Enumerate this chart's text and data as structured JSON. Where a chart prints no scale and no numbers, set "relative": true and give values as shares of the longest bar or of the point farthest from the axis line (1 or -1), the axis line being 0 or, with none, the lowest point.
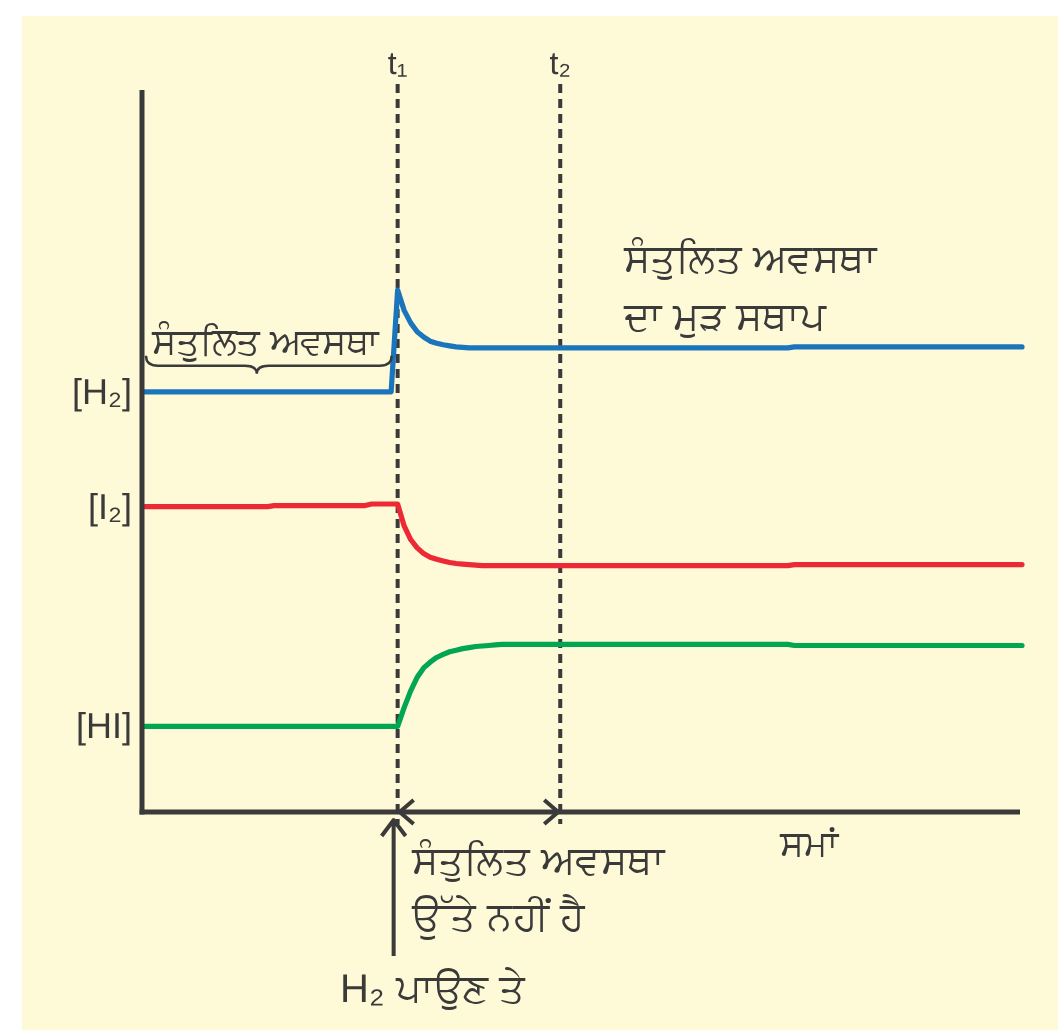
{
  "chart_data": {
    "type": "line",
    "relative": true,
    "line_style": "solid",
    "grid": "x",
    "xlabel": "ਸਮਾਂ",
    "categories": [
      null,
      null,
      null,
      null,
      null,
      null,
      null,
      null,
      null,
      null,
      null,
      null,
      null,
      null,
      null,
      null,
      null,
      null,
      null,
      null,
      null,
      null,
      null,
      null,
      null,
      null,
      null,
      null,
      null,
      null,
      null,
      null,
      null,
      null,
      null,
      null,
      null,
      null,
      null,
      "t₁",
      null,
      null,
      null,
      null,
      null,
      null,
      null,
      null,
      null,
      null,
      null,
      null,
      null,
      null,
      null,
      null,
      null,
      null,
      null,
      null,
      null,
      null,
      null,
      null,
      "t₂",
      null,
      null,
      null,
      null,
      null,
      null,
      null,
      null,
      null,
      null,
      null,
      null,
      null,
      null,
      null,
      null,
      null,
      null,
      null,
      null,
      null,
      null,
      null,
      null,
      null,
      null,
      null,
      null,
      null,
      null,
      null,
      null,
      null,
      null,
      null,
      null,
      null,
      null,
      null,
      null,
      null,
      null,
      null,
      null,
      null,
      null,
      null,
      null,
      null,
      null,
      null,
      null,
      null,
      null,
      null,
      null,
      null,
      null,
      null,
      null,
      null,
      null,
      null,
      null,
      null,
      null,
      null,
      null,
      null,
      null,
      null
    ],
    "series": [
      {
        "name": "[H₂]",
        "color": "#1b75bc",
        "values": [
          0.805,
          0.805,
          0.805,
          0.805,
          0.805,
          0.805,
          0.805,
          0.805,
          0.805,
          0.805,
          0.805,
          0.805,
          0.805,
          0.805,
          0.805,
          0.805,
          0.805,
          0.805,
          0.805,
          0.805,
          0.805,
          0.805,
          0.805,
          0.805,
          0.805,
          0.805,
          0.805,
          0.805,
          0.805,
          0.805,
          0.805,
          0.805,
          0.805,
          0.805,
          0.805,
          0.805,
          0.805,
          0.805,
          0.805,
          1,
          0.961,
          0.937,
          0.92,
          0.91,
          0.902,
          0.898,
          0.895,
          0.893,
          0.891,
          0.89,
          0.889,
          0.889,
          0.889,
          0.889,
          0.889,
          0.889,
          0.889,
          0.889,
          0.889,
          0.889,
          0.889,
          0.889,
          0.889,
          0.889,
          0.889,
          0.889,
          0.889,
          0.889,
          0.889,
          0.889,
          0.889,
          0.889,
          0.889,
          0.889,
          0.889,
          0.889,
          0.889,
          0.889,
          0.889,
          0.889,
          0.889,
          0.889,
          0.889,
          0.889,
          0.889,
          0.889,
          0.889,
          0.889,
          0.889,
          0.889,
          0.889,
          0.889,
          0.889,
          0.889,
          0.889,
          0.889,
          0.889,
          0.889,
          0.889,
          0.889,
          0.891,
          0.891,
          0.891,
          0.891,
          0.891,
          0.891,
          0.891,
          0.891,
          0.891,
          0.891,
          0.891,
          0.891,
          0.891,
          0.891,
          0.891,
          0.891,
          0.891,
          0.891,
          0.891,
          0.891,
          0.891,
          0.891,
          0.891,
          0.891,
          0.891,
          0.891,
          0.891,
          0.891,
          0.891,
          0.891,
          0.891,
          0.891,
          0.891,
          0.891,
          0.891,
          0.891
        ]
      },
      {
        "name": "[I₂]",
        "color": "#ec2a35",
        "values": [
          0.585,
          0.585,
          0.585,
          0.585,
          0.585,
          0.585,
          0.585,
          0.585,
          0.585,
          0.585,
          0.585,
          0.585,
          0.585,
          0.585,
          0.585,
          0.585,
          0.585,
          0.585,
          0.585,
          0.585,
          0.587,
          0.587,
          0.587,
          0.587,
          0.587,
          0.587,
          0.587,
          0.587,
          0.587,
          0.587,
          0.587,
          0.587,
          0.587,
          0.587,
          0.587,
          0.59,
          0.59,
          0.59,
          0.59,
          0.59,
          0.548,
          0.522,
          0.506,
          0.495,
          0.488,
          0.484,
          0.481,
          0.478,
          0.476,
          0.475,
          0.474,
          0.473,
          0.472,
          0.472,
          0.472,
          0.472,
          0.472,
          0.472,
          0.472,
          0.472,
          0.472,
          0.472,
          0.472,
          0.472,
          0.472,
          0.472,
          0.472,
          0.472,
          0.472,
          0.472,
          0.472,
          0.472,
          0.472,
          0.472,
          0.472,
          0.472,
          0.472,
          0.472,
          0.472,
          0.472,
          0.472,
          0.472,
          0.472,
          0.472,
          0.472,
          0.472,
          0.472,
          0.472,
          0.472,
          0.472,
          0.472,
          0.472,
          0.472,
          0.472,
          0.472,
          0.472,
          0.472,
          0.472,
          0.472,
          0.472,
          0.474,
          0.474,
          0.474,
          0.474,
          0.474,
          0.474,
          0.474,
          0.474,
          0.474,
          0.474,
          0.474,
          0.474,
          0.474,
          0.474,
          0.474,
          0.474,
          0.474,
          0.474,
          0.474,
          0.474,
          0.474,
          0.474,
          0.474,
          0.474,
          0.474,
          0.474,
          0.474,
          0.474,
          0.474,
          0.474,
          0.474,
          0.474,
          0.474,
          0.474,
          0.474,
          0.474
        ]
      },
      {
        "name": "[HI]",
        "color": "#00a651",
        "values": [
          0.164,
          0.164,
          0.164,
          0.164,
          0.164,
          0.164,
          0.164,
          0.164,
          0.164,
          0.164,
          0.164,
          0.164,
          0.164,
          0.164,
          0.164,
          0.164,
          0.164,
          0.164,
          0.164,
          0.164,
          0.164,
          0.164,
          0.164,
          0.164,
          0.164,
          0.164,
          0.164,
          0.164,
          0.164,
          0.164,
          0.164,
          0.164,
          0.164,
          0.164,
          0.164,
          0.164,
          0.164,
          0.164,
          0.164,
          0.164,
          0.2,
          0.232,
          0.258,
          0.276,
          0.287,
          0.296,
          0.302,
          0.307,
          0.31,
          0.313,
          0.315,
          0.317,
          0.318,
          0.319,
          0.32,
          0.321,
          0.321,
          0.321,
          0.321,
          0.321,
          0.321,
          0.321,
          0.321,
          0.321,
          0.321,
          0.321,
          0.321,
          0.321,
          0.321,
          0.321,
          0.321,
          0.321,
          0.321,
          0.321,
          0.321,
          0.321,
          0.321,
          0.321,
          0.321,
          0.321,
          0.321,
          0.321,
          0.321,
          0.321,
          0.321,
          0.321,
          0.321,
          0.321,
          0.321,
          0.321,
          0.321,
          0.321,
          0.321,
          0.321,
          0.321,
          0.321,
          0.321,
          0.321,
          0.321,
          0.321,
          0.319,
          0.319,
          0.319,
          0.319,
          0.319,
          0.319,
          0.319,
          0.319,
          0.319,
          0.319,
          0.319,
          0.319,
          0.319,
          0.319,
          0.319,
          0.319,
          0.319,
          0.319,
          0.319,
          0.319,
          0.319,
          0.319,
          0.319,
          0.319,
          0.319,
          0.319,
          0.319,
          0.319,
          0.319,
          0.319,
          0.319,
          0.319,
          0.319,
          0.319,
          0.319,
          0.319
        ]
      }
    ],
    "annotations": [
      "ਸੰਤੁਲਿਤ ਅਵਸਥਾ",
      "ਸੰਤੁਲਿਤ ਅਵਸਥਾ\nਦਾ ਮੁੜ ਸਥਾਪ",
      "ਸੰਤੁਲਿਤ ਅਵਸਥਾ\nਉੱਤੇ ਨਹੀਂ ਹੈ",
      "H₂ ਪਾਉਣ ਤੇ"
    ]
  }
}
